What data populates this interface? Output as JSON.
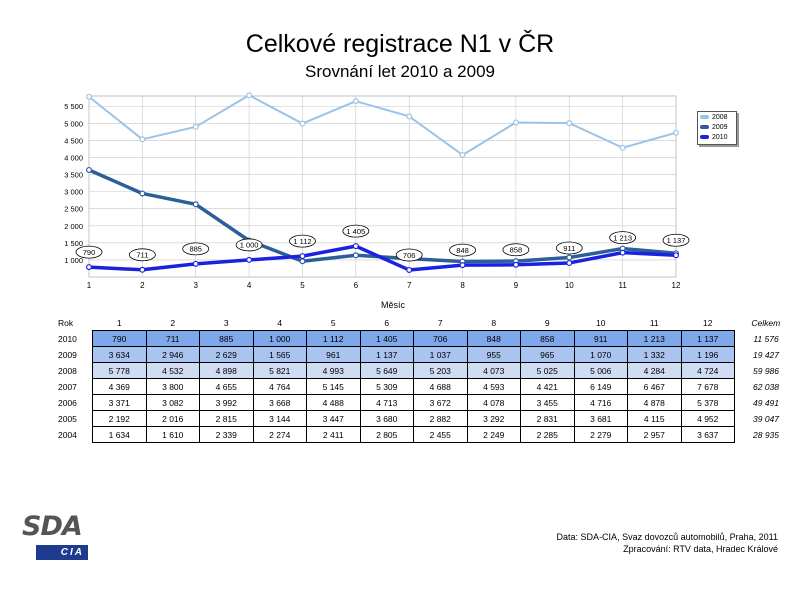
{
  "chart_data": {
    "type": "line",
    "title": "Celkové registrace N1 v ČR",
    "subtitle": "Srovnání let 2010 a 2009",
    "xlabel": "Měsíc",
    "ylabel": "",
    "x": [
      1,
      2,
      3,
      4,
      5,
      6,
      7,
      8,
      9,
      10,
      11,
      12
    ],
    "ylim": [
      500,
      5800
    ],
    "yticks": [
      1000,
      1500,
      2000,
      2500,
      3000,
      3500,
      4000,
      4500,
      5000,
      5500
    ],
    "ytick_labels": [
      "1 000",
      "1 500",
      "2 000",
      "2 500",
      "3 000",
      "3 500",
      "4 000",
      "4 500",
      "5 000",
      "5 500"
    ],
    "grid": true,
    "legend_position": "top-right",
    "series": [
      {
        "name": "2008",
        "color": "#9cc3e6",
        "values": [
          5778,
          4532,
          4898,
          5821,
          4993,
          5649,
          5203,
          4073,
          5025,
          5006,
          4284,
          4724
        ]
      },
      {
        "name": "2009",
        "color": "#2c5f9a",
        "values": [
          3634,
          2946,
          2629,
          1565,
          961,
          1137,
          1037,
          955,
          965,
          1070,
          1332,
          1196
        ]
      },
      {
        "name": "2010",
        "color": "#1a22e0",
        "values": [
          790,
          711,
          885,
          1000,
          1112,
          1405,
          706,
          848,
          858,
          911,
          1213,
          1137
        ]
      }
    ],
    "data_labels_2010": [
      "790",
      "711",
      "885",
      "1 000",
      "1 112",
      "1 405",
      "706",
      "848",
      "858",
      "911",
      "1 213",
      "1 137"
    ]
  },
  "table": {
    "corner": "Rok",
    "months": [
      "1",
      "2",
      "3",
      "4",
      "5",
      "6",
      "7",
      "8",
      "9",
      "10",
      "11",
      "12"
    ],
    "total_header": "Celkem",
    "rows": [
      {
        "year": "2010",
        "values": [
          "790",
          "711",
          "885",
          "1 000",
          "1 112",
          "1 405",
          "706",
          "848",
          "858",
          "911",
          "1 213",
          "1 137"
        ],
        "total": "11 576"
      },
      {
        "year": "2009",
        "values": [
          "3 634",
          "2 946",
          "2 629",
          "1 565",
          "961",
          "1 137",
          "1 037",
          "955",
          "965",
          "1 070",
          "1 332",
          "1 196"
        ],
        "total": "19 427"
      },
      {
        "year": "2008",
        "values": [
          "5 778",
          "4 532",
          "4 898",
          "5 821",
          "4 993",
          "5 649",
          "5 203",
          "4 073",
          "5 025",
          "5 006",
          "4 284",
          "4 724"
        ],
        "total": "59 986"
      },
      {
        "year": "2007",
        "values": [
          "4 369",
          "3 800",
          "4 655",
          "4 764",
          "5 145",
          "5 309",
          "4 688",
          "4 593",
          "4 421",
          "6 149",
          "6 467",
          "7 678"
        ],
        "total": "62 038"
      },
      {
        "year": "2006",
        "values": [
          "3 371",
          "3 082",
          "3 992",
          "3 668",
          "4 488",
          "4 713",
          "3 672",
          "4 078",
          "3 455",
          "4 716",
          "4 878",
          "5 378"
        ],
        "total": "49 491"
      },
      {
        "year": "2005",
        "values": [
          "2 192",
          "2 016",
          "2 815",
          "3 144",
          "3 447",
          "3 680",
          "2 882",
          "3 292",
          "2 831",
          "3 681",
          "4 115",
          "4 952"
        ],
        "total": "39 047"
      },
      {
        "year": "2004",
        "values": [
          "1 634",
          "1 610",
          "2 339",
          "2 274",
          "2 411",
          "2 805",
          "2 455",
          "2 249",
          "2 285",
          "2 279",
          "2 957",
          "3 637"
        ],
        "total": "28 935"
      }
    ]
  },
  "logo": {
    "top": "SDA",
    "bottom": "CIA"
  },
  "source": {
    "line1": "Data: SDA-CIA, Svaz dovozců automobilů, Praha, 2011",
    "line2": "Zpracování: RTV data, Hradec Králové"
  }
}
